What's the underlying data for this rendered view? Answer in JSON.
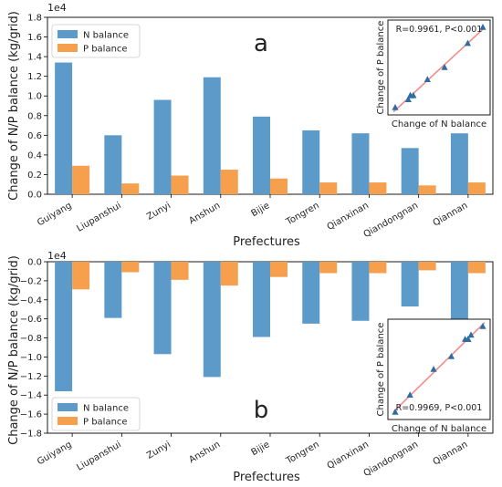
{
  "colors": {
    "n": "#5b9ac9",
    "p": "#f6a04d",
    "fit": "#f28b8b",
    "marker": "#2e6da4"
  },
  "chart_data": [
    {
      "type": "bar",
      "panel_label": "a",
      "ylabel": "Change of N/P balance (kg/grid)",
      "xlabel": "Prefectures",
      "scale_label": "1e4",
      "ylim": [
        0,
        1.8
      ],
      "yticks": [
        "0.0",
        "0.2",
        "0.4",
        "0.6",
        "0.8",
        "1.0",
        "1.2",
        "1.4",
        "1.6",
        "1.8"
      ],
      "categories": [
        "Guiyang",
        "Liupanshui",
        "Zunyi",
        "Anshun",
        "Bijie",
        "Tongren",
        "Qianxinan",
        "Qiandongnan",
        "Qiannan"
      ],
      "series": [
        {
          "name": "N balance",
          "values": [
            1.34,
            0.6,
            0.96,
            1.19,
            0.79,
            0.65,
            0.62,
            0.47,
            0.62
          ]
        },
        {
          "name": "P balance",
          "values": [
            0.29,
            0.11,
            0.19,
            0.25,
            0.16,
            0.12,
            0.12,
            0.09,
            0.12
          ]
        }
      ],
      "legend_position": "top-left",
      "inset": {
        "type": "scatter",
        "xlabel": "Change of N balance",
        "ylabel": "Change of P balance",
        "annotation": "R=0.9961, P<0.001",
        "points": [
          [
            0.47,
            0.09
          ],
          [
            0.6,
            0.11
          ],
          [
            0.62,
            0.12
          ],
          [
            0.62,
            0.12
          ],
          [
            0.65,
            0.12
          ],
          [
            0.79,
            0.16
          ],
          [
            0.96,
            0.19
          ],
          [
            1.19,
            0.25
          ],
          [
            1.34,
            0.29
          ]
        ]
      }
    },
    {
      "type": "bar",
      "panel_label": "b",
      "ylabel": "Change of N/P balance (kg/grid)",
      "xlabel": "Prefectures",
      "scale_label": "1e4",
      "ylim": [
        -1.8,
        0
      ],
      "yticks": [
        "0.0",
        "−0.2",
        "−0.4",
        "−0.6",
        "−0.8",
        "−1.0",
        "−1.2",
        "−1.4",
        "−1.6",
        "−1.8"
      ],
      "categories": [
        "Guiyang",
        "Liupanshui",
        "Zunyi",
        "Anshun",
        "Bijie",
        "Tongren",
        "Qianxinan",
        "Qiandongnan",
        "Qiannan"
      ],
      "series": [
        {
          "name": "N balance",
          "values": [
            -1.36,
            -0.59,
            -0.97,
            -1.21,
            -0.79,
            -0.65,
            -0.62,
            -0.47,
            -0.62
          ]
        },
        {
          "name": "P balance",
          "values": [
            -0.29,
            -0.11,
            -0.19,
            -0.25,
            -0.16,
            -0.12,
            -0.12,
            -0.09,
            -0.12
          ]
        }
      ],
      "legend_position": "bottom-left",
      "inset": {
        "type": "scatter",
        "xlabel": "Change of N balance",
        "ylabel": "Change of P balance",
        "annotation": "R=0.9969, P<0.001",
        "points": [
          [
            -1.36,
            -0.29
          ],
          [
            -1.21,
            -0.25
          ],
          [
            -0.97,
            -0.19
          ],
          [
            -0.79,
            -0.16
          ],
          [
            -0.65,
            -0.12
          ],
          [
            -0.62,
            -0.12
          ],
          [
            -0.62,
            -0.12
          ],
          [
            -0.59,
            -0.11
          ],
          [
            -0.47,
            -0.09
          ]
        ]
      }
    }
  ]
}
